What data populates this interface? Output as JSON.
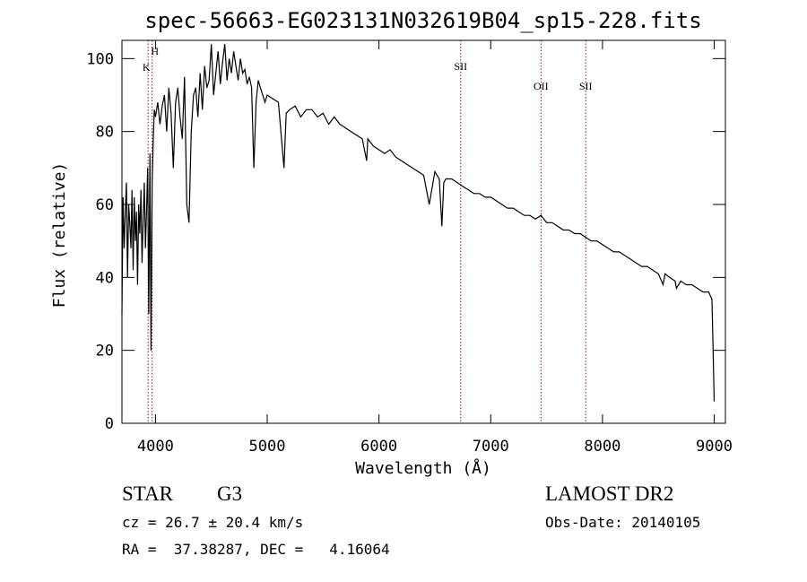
{
  "chart_data": {
    "type": "line",
    "title": "spec-56663-EG023131N032619B04_sp15-228.fits",
    "xlabel": "Wavelength (Å)",
    "ylabel": "Flux (relative)",
    "xlim": [
      3700,
      9100
    ],
    "ylim": [
      0,
      105
    ],
    "xticks": [
      4000,
      5000,
      6000,
      7000,
      8000,
      9000
    ],
    "yticks": [
      0,
      20,
      40,
      60,
      80,
      100
    ],
    "lines": [
      {
        "label": "H",
        "x": 3970
      },
      {
        "label": "K",
        "x": 3934
      },
      {
        "label": "SII",
        "x": 6731
      },
      {
        "label": "OII",
        "x": 7450
      },
      {
        "label": "SII",
        "x": 7850
      }
    ],
    "line_color": "#8b1a1a",
    "series": [
      {
        "x": [
          3700,
          3710,
          3720,
          3730,
          3740,
          3750,
          3760,
          3770,
          3780,
          3790,
          3800,
          3810,
          3820,
          3830,
          3840,
          3850,
          3860,
          3870,
          3880,
          3890,
          3900,
          3910,
          3920,
          3930,
          3940,
          3950,
          3960,
          3970,
          3980,
          3990,
          4000,
          4020,
          4040,
          4060,
          4080,
          4100,
          4120,
          4140,
          4160,
          4180,
          4200,
          4220,
          4240,
          4260,
          4280,
          4300,
          4320,
          4340,
          4360,
          4380,
          4400,
          4420,
          4440,
          4460,
          4480,
          4500,
          4520,
          4540,
          4560,
          4580,
          4600,
          4620,
          4640,
          4660,
          4680,
          4700,
          4720,
          4740,
          4760,
          4780,
          4800,
          4820,
          4840,
          4860,
          4880,
          4900,
          4920,
          4940,
          4960,
          4980,
          5000,
          5050,
          5100,
          5150,
          5170,
          5200,
          5250,
          5300,
          5350,
          5400,
          5450,
          5500,
          5550,
          5600,
          5650,
          5700,
          5750,
          5800,
          5850,
          5890,
          5900,
          5950,
          6000,
          6050,
          6100,
          6150,
          6200,
          6250,
          6300,
          6350,
          6400,
          6450,
          6500,
          6540,
          6563,
          6580,
          6600,
          6650,
          6700,
          6750,
          6800,
          6850,
          6900,
          6950,
          7000,
          7050,
          7100,
          7150,
          7200,
          7250,
          7300,
          7350,
          7400,
          7450,
          7500,
          7550,
          7600,
          7650,
          7700,
          7750,
          7800,
          7850,
          7900,
          7950,
          8000,
          8050,
          8100,
          8150,
          8200,
          8250,
          8300,
          8350,
          8400,
          8450,
          8500,
          8542,
          8560,
          8600,
          8650,
          8662,
          8700,
          8750,
          8800,
          8850,
          8900,
          8950,
          8980,
          8990,
          9000
        ],
        "values": [
          30,
          62,
          48,
          58,
          66,
          40,
          60,
          55,
          48,
          64,
          42,
          62,
          50,
          58,
          38,
          60,
          52,
          64,
          44,
          56,
          66,
          48,
          58,
          70,
          30,
          74,
          20,
          66,
          78,
          86,
          84,
          88,
          82,
          87,
          90,
          80,
          92,
          85,
          70,
          88,
          92,
          84,
          78,
          95,
          60,
          55,
          80,
          90,
          92,
          84,
          96,
          86,
          98,
          92,
          94,
          104,
          90,
          96,
          102,
          93,
          99,
          104,
          94,
          100,
          96,
          102,
          98,
          94,
          100,
          96,
          97,
          93,
          95,
          92,
          70,
          88,
          94,
          92,
          90,
          88,
          90,
          89,
          88,
          70,
          85,
          86,
          87,
          84,
          86,
          86,
          84,
          85,
          82,
          84,
          82,
          81,
          80,
          79,
          78,
          72,
          78,
          76,
          75,
          74,
          75,
          73,
          72,
          71,
          70,
          69,
          68,
          60,
          69,
          67,
          54,
          66,
          67,
          67,
          66,
          65,
          64,
          63,
          63,
          62,
          62,
          61,
          60,
          59,
          59,
          58,
          57,
          57,
          56,
          57,
          55,
          55,
          54,
          53,
          53,
          52,
          52,
          51,
          50,
          50,
          49,
          48,
          47,
          47,
          46,
          45,
          44,
          43,
          43,
          42,
          41,
          38,
          41,
          40,
          39,
          37,
          39,
          38,
          38,
          37,
          36,
          36,
          34,
          20,
          6
        ]
      }
    ],
    "grid": false,
    "legend": "none"
  },
  "info": {
    "left": {
      "class_label": "STAR",
      "subclass": "G3",
      "cz": "cz = 26.7 ± 20.4 km/s",
      "radec": "RA =  37.38287, DEC =   4.16064"
    },
    "right": {
      "survey": "LAMOST DR2",
      "obsdate": "Obs-Date: 20140105"
    }
  }
}
